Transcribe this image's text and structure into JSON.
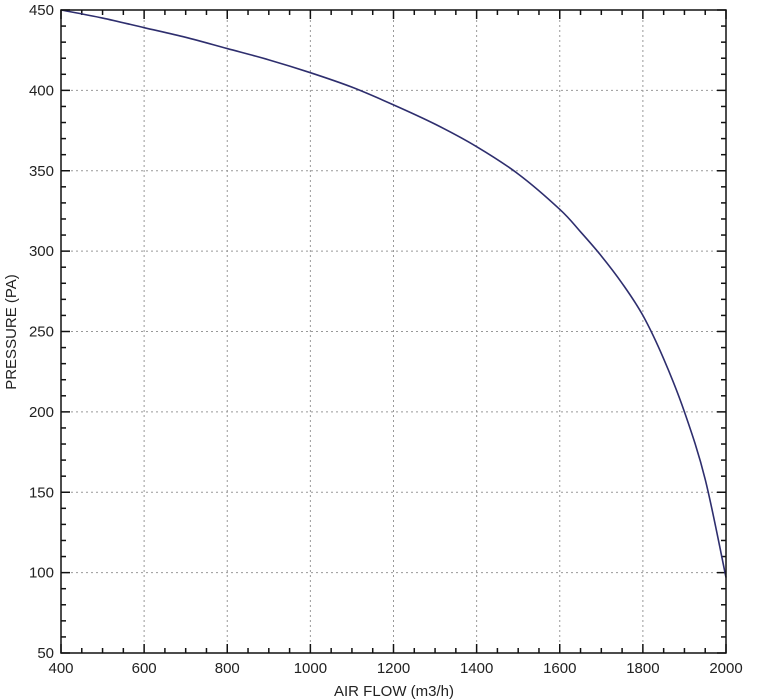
{
  "chart_data": {
    "type": "line",
    "title": "",
    "xlabel": "AIR FLOW (m3/h)",
    "ylabel": "PRESSURE (PA)",
    "xlim": [
      400,
      2000
    ],
    "ylim": [
      50,
      450
    ],
    "xticks": [
      400,
      600,
      800,
      1000,
      1200,
      1400,
      1600,
      1800,
      2000
    ],
    "yticks": [
      50,
      100,
      150,
      200,
      250,
      300,
      350,
      400,
      450
    ],
    "grid": true,
    "line_color": "#2e2e6e",
    "series": [
      {
        "x": [
          400,
          500,
          600,
          700,
          800,
          900,
          1000,
          1100,
          1200,
          1300,
          1400,
          1500,
          1600,
          1650,
          1700,
          1750,
          1800,
          1850,
          1900,
          1950,
          2000
        ],
        "y": [
          450,
          445,
          439,
          433,
          426,
          419,
          411,
          402,
          391,
          379,
          365,
          348,
          326,
          312,
          297,
          280,
          260,
          233,
          200,
          158,
          97
        ]
      }
    ]
  }
}
